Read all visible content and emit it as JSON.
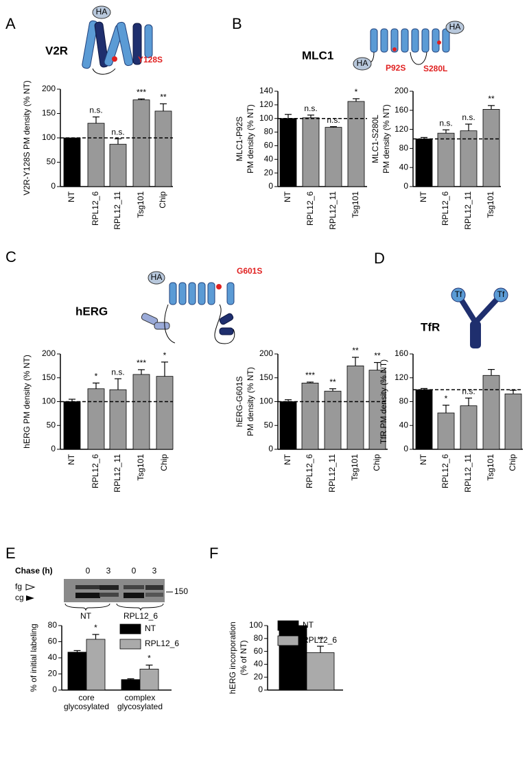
{
  "panels": [
    {
      "letter": "A",
      "title": "V2R",
      "diagram_labels": [
        "HA",
        "Y128S"
      ]
    },
    {
      "letter": "B",
      "title": "MLC1",
      "diagram_labels": [
        "HA",
        "HA",
        "P92S",
        "S280L"
      ]
    },
    {
      "letter": "C",
      "title": "hERG",
      "diagram_labels": [
        "HA",
        "G601S"
      ]
    },
    {
      "letter": "D",
      "title": "TfR",
      "diagram_labels": [
        "Tf",
        "Tf"
      ]
    },
    {
      "letter": "E"
    },
    {
      "letter": "F"
    }
  ],
  "blot": {
    "chase_label": "Chase (h)",
    "times": [
      "0",
      "3",
      "0",
      "3"
    ],
    "bands": [
      "fg",
      "cg"
    ],
    "marker": "150",
    "groups": [
      "NT",
      "RPL12_6"
    ]
  },
  "chart_data": [
    {
      "type": "bar",
      "ylabel": "V2R-Y128S PM density  (% NT)",
      "categories": [
        "NT",
        "RPL12_6",
        "RPL12_11",
        "Tsg101",
        "Chip"
      ],
      "values": [
        100,
        130,
        87,
        178,
        155
      ],
      "errors": [
        null,
        13,
        11,
        2,
        15
      ],
      "significance": [
        null,
        "n.s.",
        "n.s.",
        "***",
        "**"
      ],
      "colors": [
        "#000000",
        "#999999",
        "#999999",
        "#999999",
        "#999999"
      ],
      "reference_line": 100,
      "ylim": [
        0,
        200
      ],
      "yticks": [
        0,
        50,
        100,
        150,
        200
      ]
    },
    {
      "type": "bar",
      "ylabel": [
        "MLC1-P92S",
        "PM density (% NT)"
      ],
      "categories": [
        "NT",
        "RPL12_6",
        "RPL12_11",
        "Tsg101"
      ],
      "values": [
        100,
        101,
        87,
        125
      ],
      "errors": [
        6,
        4,
        1,
        4
      ],
      "significance": [
        null,
        "n.s.",
        "n.s.",
        "*"
      ],
      "colors": [
        "#000000",
        "#999999",
        "#999999",
        "#999999"
      ],
      "reference_line": 100,
      "ylim": [
        0,
        140
      ],
      "yticks": [
        0,
        20,
        40,
        60,
        80,
        100,
        120,
        140
      ]
    },
    {
      "type": "bar",
      "ylabel": [
        "MLC1-S280L",
        "PM density (% NT)"
      ],
      "categories": [
        "NT",
        "RPL12_6",
        "RPL12_11",
        "Tsg101"
      ],
      "values": [
        100,
        112,
        117,
        162
      ],
      "errors": [
        3,
        7,
        14,
        8
      ],
      "significance": [
        null,
        "n.s.",
        "n.s.",
        "**"
      ],
      "colors": [
        "#000000",
        "#999999",
        "#999999",
        "#999999"
      ],
      "reference_line": 100,
      "ylim": [
        0,
        200
      ],
      "yticks": [
        0,
        40,
        80,
        120,
        160,
        200
      ]
    },
    {
      "type": "bar",
      "ylabel": "hERG  PM density (% NT)",
      "categories": [
        "NT",
        "RPL12_6",
        "RPL12_11",
        "Tsg101",
        "Chip"
      ],
      "values": [
        100,
        127,
        125,
        157,
        153
      ],
      "errors": [
        5,
        12,
        23,
        10,
        30
      ],
      "significance": [
        null,
        "*",
        "n.s.",
        "***",
        "*"
      ],
      "colors": [
        "#000000",
        "#999999",
        "#999999",
        "#999999",
        "#999999"
      ],
      "reference_line": 100,
      "ylim": [
        0,
        200
      ],
      "yticks": [
        0,
        50,
        100,
        150,
        200
      ]
    },
    {
      "type": "bar",
      "ylabel": [
        "hERG-G601S",
        "PM density (% NT)"
      ],
      "categories": [
        "NT",
        "RPL12_6",
        "RPL12_11",
        "Tsg101",
        "Chip"
      ],
      "values": [
        100,
        139,
        122,
        175,
        166
      ],
      "errors": [
        4,
        2,
        5,
        18,
        16
      ],
      "significance": [
        null,
        "***",
        "**",
        "**",
        "**"
      ],
      "colors": [
        "#000000",
        "#999999",
        "#999999",
        "#999999",
        "#999999"
      ],
      "reference_line": 100,
      "ylim": [
        0,
        200
      ],
      "yticks": [
        0,
        50,
        100,
        150,
        200
      ]
    },
    {
      "type": "bar",
      "ylabel": "TfR PM density (% NT)",
      "categories": [
        "NT",
        "RPL12_6",
        "RPL12_11",
        "Tsg101",
        "Chip"
      ],
      "values": [
        100,
        61,
        73,
        124,
        93
      ],
      "errors": [
        2,
        13,
        13,
        10,
        6
      ],
      "significance": [
        null,
        "*",
        "n.s.",
        null,
        null
      ],
      "colors": [
        "#000000",
        "#999999",
        "#999999",
        "#999999",
        "#999999"
      ],
      "reference_line": 100,
      "ylim": [
        0,
        160
      ],
      "yticks": [
        0,
        40,
        80,
        120,
        160
      ]
    },
    {
      "type": "grouped_bar",
      "ylabel": "% of initial labeling",
      "categories": [
        [
          "core",
          "glycosylated"
        ],
        [
          "complex",
          "glycosylated"
        ]
      ],
      "series": [
        {
          "name": "NT",
          "color": "#000000",
          "values": [
            47,
            13
          ],
          "errors": [
            2,
            1
          ],
          "significance": [
            null,
            null
          ]
        },
        {
          "name": "RPL12_6",
          "color": "#aaaaaa",
          "values": [
            63,
            26
          ],
          "errors": [
            6,
            5
          ],
          "significance": [
            "*",
            "*"
          ]
        }
      ],
      "ylim": [
        0,
        80
      ],
      "yticks": [
        0,
        20,
        40,
        60,
        80
      ]
    },
    {
      "type": "grouped_bar",
      "ylabel": [
        "hERG  incorporation",
        "(% of NT)"
      ],
      "categories": [
        null
      ],
      "series": [
        {
          "name": "NT",
          "color": "#000000",
          "values": [
            100
          ],
          "errors": [
            null
          ],
          "significance": [
            null
          ]
        },
        {
          "name": "RPL12_6",
          "color": "#aaaaaa",
          "values": [
            58
          ],
          "errors": [
            10
          ],
          "significance": [
            "**"
          ]
        }
      ],
      "ylim": [
        0,
        100
      ],
      "yticks": [
        0,
        20,
        40,
        60,
        80,
        100
      ]
    }
  ]
}
